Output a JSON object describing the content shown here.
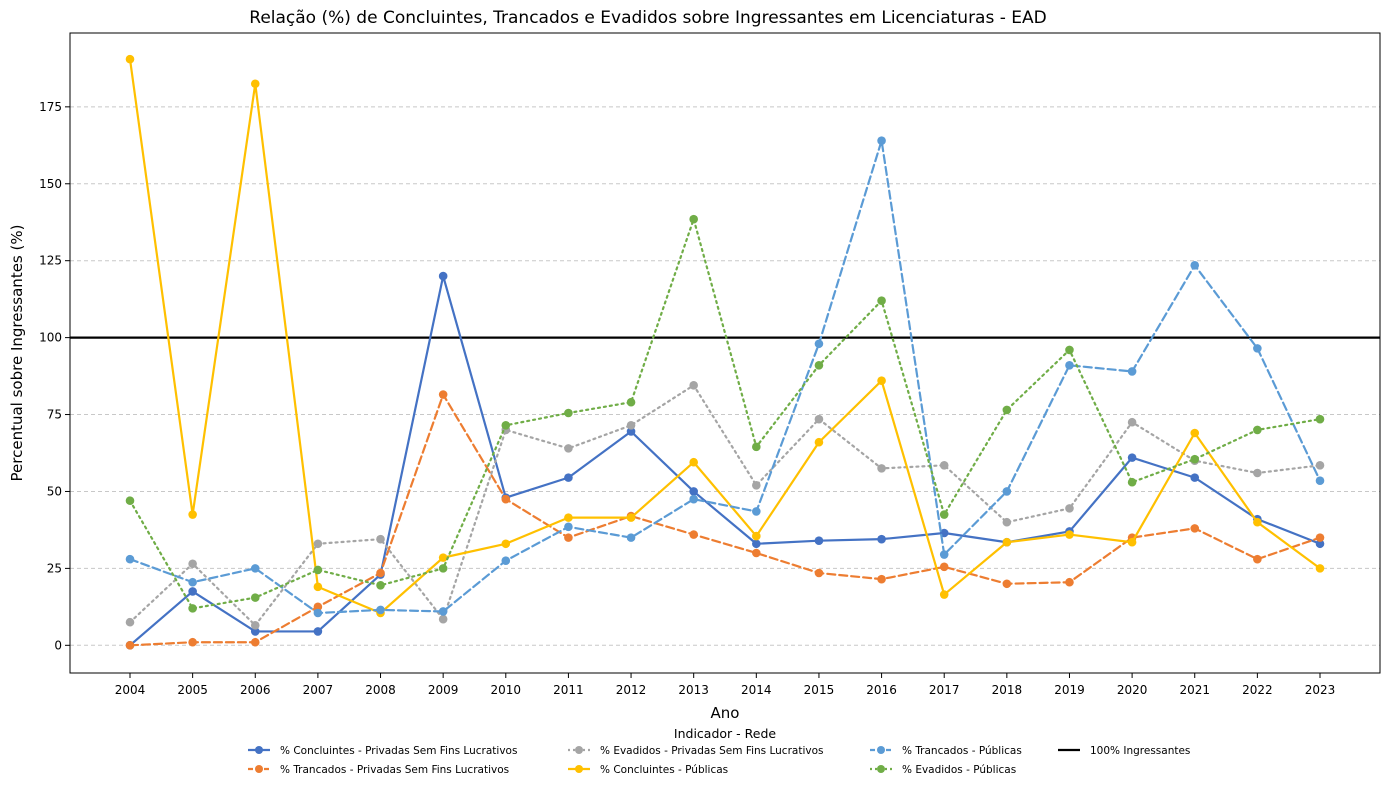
{
  "chart_data": {
    "type": "line",
    "title": "Relação (%) de Concluintes, Trancados e Evadidos sobre Ingressantes em Licenciaturas - EAD",
    "xlabel": "Ano",
    "ylabel": "Percentual sobre Ingressantes (%)",
    "ylim": [
      -9,
      199
    ],
    "yticks": [
      0,
      25,
      50,
      75,
      100,
      125,
      150,
      175
    ],
    "grid": "horizontal dashed",
    "legend_title": "Indicador - Rede",
    "legend_position": "bottom-center",
    "x": [
      "2004",
      "2005",
      "2006",
      "2007",
      "2008",
      "2009",
      "2010",
      "2011",
      "2012",
      "2013",
      "2014",
      "2015",
      "2016",
      "2017",
      "2018",
      "2019",
      "2020",
      "2021",
      "2022",
      "2023"
    ],
    "reference_line": {
      "name": "100% Ingressantes",
      "value": 100,
      "color": "#000000"
    },
    "series": [
      {
        "name": "% Concluintes - Privadas Sem Fins Lucrativos",
        "color": "#4472C4",
        "style": "solid",
        "values": [
          0,
          17.5,
          4.5,
          4.5,
          23,
          120,
          48,
          54.5,
          69.5,
          50,
          33,
          34,
          34.5,
          36.5,
          33.5,
          37,
          61,
          54.5,
          41,
          33
        ]
      },
      {
        "name": "% Trancados - Privadas Sem Fins Lucrativos",
        "color": "#ED7D31",
        "style": "dashed",
        "values": [
          0,
          1,
          1,
          12.5,
          23.5,
          81.5,
          47.5,
          35,
          42,
          36,
          30,
          23.5,
          21.5,
          25.5,
          20,
          20.5,
          35,
          38,
          28,
          35
        ]
      },
      {
        "name": "% Evadidos - Privadas Sem Fins Lucrativos",
        "color": "#A5A5A5",
        "style": "dotted",
        "values": [
          7.5,
          26.5,
          6.5,
          33,
          34.5,
          8.5,
          70,
          64,
          71.5,
          84.5,
          52,
          73.5,
          57.5,
          58.5,
          40,
          44.5,
          72.5,
          60,
          56,
          58.5
        ]
      },
      {
        "name": "% Concluintes - Públicas",
        "color": "#FFC000",
        "style": "solid",
        "values": [
          190.5,
          42.5,
          182.5,
          19,
          10.5,
          28.5,
          33,
          41.5,
          41.5,
          59.5,
          35.5,
          66,
          86,
          16.5,
          33.5,
          36,
          33.5,
          69,
          40,
          25
        ]
      },
      {
        "name": "% Trancados - Públicas",
        "color": "#5B9BD5",
        "style": "dashed",
        "values": [
          28,
          20.5,
          25,
          10.5,
          11.5,
          11,
          27.5,
          38.5,
          35,
          47.5,
          43.5,
          98,
          164,
          29.5,
          50,
          91,
          89,
          123.5,
          96.5,
          53.5
        ]
      },
      {
        "name": "% Evadidos - Públicas",
        "color": "#70AD47",
        "style": "dotted",
        "values": [
          47,
          12,
          15.5,
          24.5,
          19.5,
          25,
          71.5,
          75.5,
          79,
          138.5,
          64.5,
          91,
          112,
          42.5,
          76.5,
          96,
          53,
          60.5,
          70,
          73.5
        ]
      }
    ]
  }
}
